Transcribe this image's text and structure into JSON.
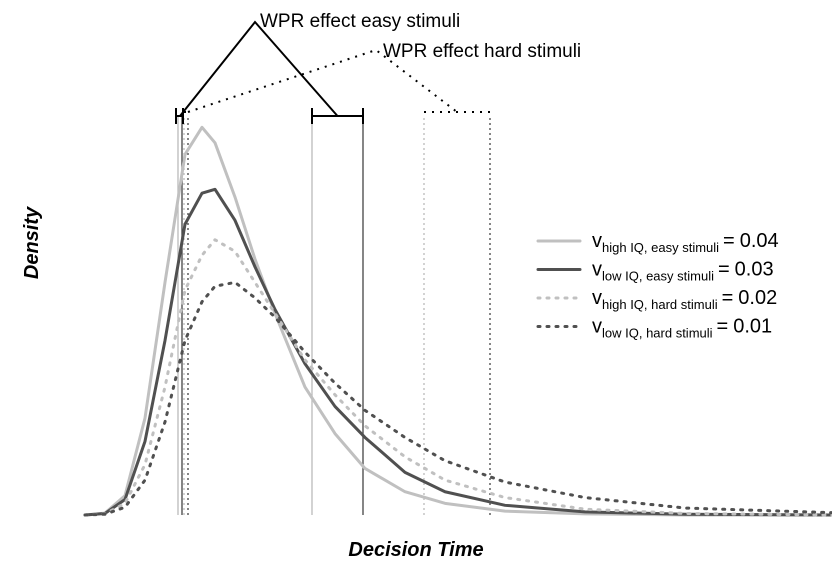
{
  "chart_data": {
    "type": "line",
    "xlabel": "Decision Time",
    "ylabel": "Density",
    "annotations": {
      "easy": "WPR effect easy stimuli",
      "hard": "WPR effect hard stimuli"
    },
    "xlim": [
      0,
      75
    ],
    "ylim": [
      0,
      130
    ],
    "x": [
      0,
      2,
      4,
      6,
      8,
      10,
      11.7,
      13,
      15,
      17,
      19,
      22,
      25,
      28,
      32,
      36,
      42,
      50,
      60,
      74.7
    ],
    "series": [
      {
        "symbol": "v",
        "subscript": "high IQ, easy stimuli",
        "relation": "=",
        "drift": 0.04,
        "color": "#c0c0c0",
        "style": "solid",
        "values": [
          0,
          0.5,
          5,
          25,
          60,
          93,
          100,
          96,
          82,
          66,
          52,
          33,
          21,
          12,
          6,
          3,
          1,
          0.3,
          0,
          0
        ],
        "lower": 9.3,
        "upper": 22.7
      },
      {
        "symbol": "v",
        "subscript": "low IQ, easy stimuli",
        "relation": "=",
        "drift": 0.03,
        "color": "#505050",
        "style": "solid",
        "values": [
          0,
          0.4,
          4,
          19,
          45,
          75,
          83,
          84,
          76,
          64,
          53,
          39,
          28,
          20,
          11,
          6,
          2.5,
          0.8,
          0.2,
          0
        ],
        "lower": 9.7,
        "upper": 27.8
      },
      {
        "symbol": "v",
        "subscript": "high IQ, hard stimuli",
        "relation": "=",
        "drift": 0.02,
        "color": "#c0c0c0",
        "style": "dotted",
        "values": [
          0,
          0.3,
          3,
          13,
          33,
          58,
          67,
          71,
          68,
          60,
          52,
          40,
          31,
          23,
          15,
          9,
          4.5,
          1.5,
          0.4,
          0
        ],
        "lower": 9.9,
        "upper": 33.9
      },
      {
        "symbol": "v",
        "subscript": "low IQ, hard stimuli",
        "relation": "=",
        "drift": 0.01,
        "color": "#505050",
        "style": "dotted",
        "values": [
          0,
          0.2,
          2,
          9,
          24,
          45,
          55,
          59,
          60,
          56,
          51,
          42,
          34,
          27,
          20,
          14,
          8.5,
          4.5,
          1.8,
          0.6
        ],
        "lower": 10.3,
        "upper": 40.5
      }
    ]
  }
}
